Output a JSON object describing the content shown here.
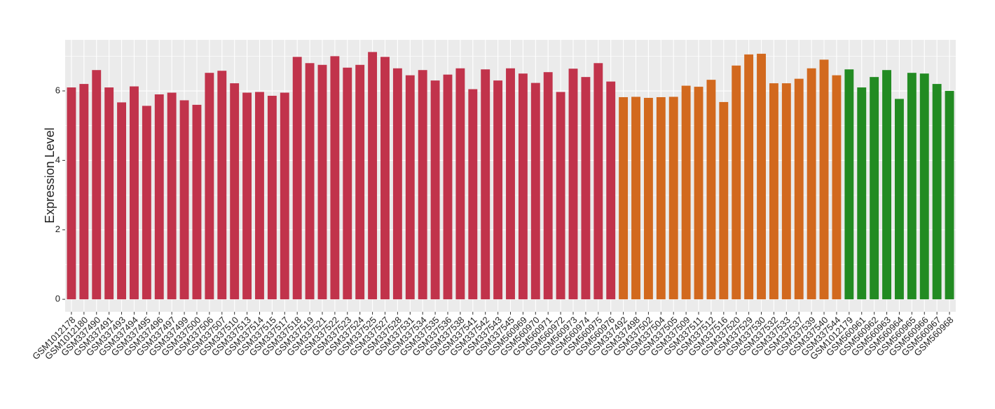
{
  "chart_data": {
    "type": "bar",
    "y_label": "Expression Level",
    "categories": [
      "GSM1012178",
      "GSM1012180",
      "GSM337490",
      "GSM337491",
      "GSM337493",
      "GSM337494",
      "GSM337495",
      "GSM337496",
      "GSM337497",
      "GSM337499",
      "GSM337500",
      "GSM337506",
      "GSM337507",
      "GSM337510",
      "GSM337513",
      "GSM337514",
      "GSM337515",
      "GSM337517",
      "GSM337518",
      "GSM337519",
      "GSM337521",
      "GSM337522",
      "GSM337523",
      "GSM337524",
      "GSM337525",
      "GSM337527",
      "GSM337528",
      "GSM337531",
      "GSM337534",
      "GSM337535",
      "GSM337536",
      "GSM337538",
      "GSM337541",
      "GSM337542",
      "GSM337543",
      "GSM337545",
      "GSM560969",
      "GSM560970",
      "GSM560971",
      "GSM560972",
      "GSM560973",
      "GSM560974",
      "GSM560975",
      "GSM560976",
      "GSM337492",
      "GSM337498",
      "GSM337502",
      "GSM337504",
      "GSM337505",
      "GSM337509",
      "GSM337511",
      "GSM337512",
      "GSM337516",
      "GSM337520",
      "GSM337529",
      "GSM337530",
      "GSM337532",
      "GSM337533",
      "GSM337537",
      "GSM337539",
      "GSM337540",
      "GSM337544",
      "GSM1012179",
      "GSM560961",
      "GSM560962",
      "GSM560963",
      "GSM560964",
      "GSM560965",
      "GSM560966",
      "GSM560967",
      "GSM560968"
    ],
    "values": [
      6.1,
      6.2,
      6.6,
      6.1,
      5.67,
      6.13,
      5.57,
      5.9,
      5.95,
      5.73,
      5.6,
      6.52,
      6.58,
      6.22,
      5.95,
      5.97,
      5.86,
      5.95,
      6.98,
      6.8,
      6.75,
      7.0,
      6.67,
      6.75,
      7.12,
      6.98,
      6.65,
      6.45,
      6.6,
      6.3,
      6.47,
      6.65,
      6.05,
      6.62,
      6.3,
      6.65,
      6.5,
      6.23,
      6.54,
      5.97,
      6.64,
      6.4,
      6.8,
      6.27,
      5.82,
      5.83,
      5.8,
      5.82,
      5.83,
      6.15,
      6.12,
      6.32,
      5.68,
      6.73,
      7.05,
      7.07,
      6.22,
      6.22,
      6.35,
      6.65,
      6.9,
      6.45,
      6.62,
      6.1,
      6.4,
      6.6,
      5.77,
      6.52,
      6.5,
      6.2,
      6.0
    ],
    "colors": [
      "#c1334b",
      "#c1334b",
      "#c1334b",
      "#c1334b",
      "#c1334b",
      "#c1334b",
      "#c1334b",
      "#c1334b",
      "#c1334b",
      "#c1334b",
      "#c1334b",
      "#c1334b",
      "#c1334b",
      "#c1334b",
      "#c1334b",
      "#c1334b",
      "#c1334b",
      "#c1334b",
      "#c1334b",
      "#c1334b",
      "#c1334b",
      "#c1334b",
      "#c1334b",
      "#c1334b",
      "#c1334b",
      "#c1334b",
      "#c1334b",
      "#c1334b",
      "#c1334b",
      "#c1334b",
      "#c1334b",
      "#c1334b",
      "#c1334b",
      "#c1334b",
      "#c1334b",
      "#c1334b",
      "#c1334b",
      "#c1334b",
      "#c1334b",
      "#c1334b",
      "#c1334b",
      "#c1334b",
      "#c1334b",
      "#c1334b",
      "#d2691e",
      "#d2691e",
      "#d2691e",
      "#d2691e",
      "#d2691e",
      "#d2691e",
      "#d2691e",
      "#d2691e",
      "#d2691e",
      "#d2691e",
      "#d2691e",
      "#d2691e",
      "#d2691e",
      "#d2691e",
      "#d2691e",
      "#d2691e",
      "#d2691e",
      "#d2691e",
      "#228b22",
      "#228b22",
      "#228b22",
      "#228b22",
      "#228b22",
      "#228b22",
      "#228b22",
      "#228b22",
      "#228b22"
    ],
    "ylim": [
      -0.36,
      7.47
    ],
    "yticks": [
      0,
      2,
      4,
      6
    ],
    "minor_yticks": [
      1,
      3,
      5,
      7
    ],
    "grid": true
  }
}
